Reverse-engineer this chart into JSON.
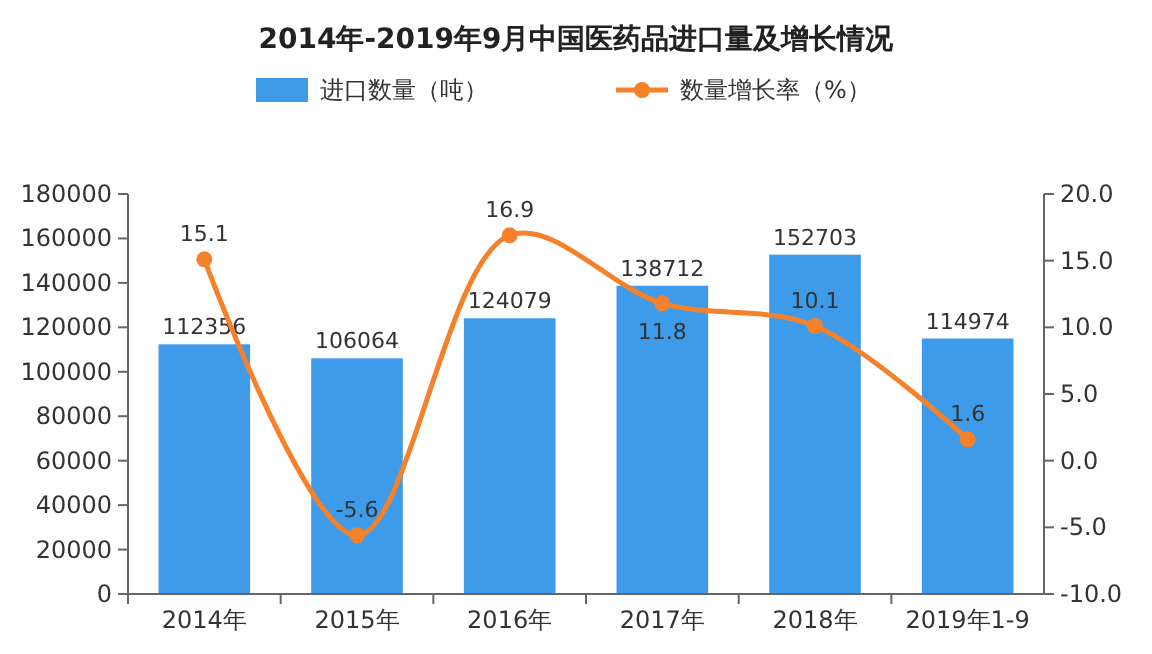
{
  "chart_data": {
    "type": "bar",
    "title": "2014年-2019年9月中国医药品进口量及增长情况",
    "categories": [
      "2014年",
      "2015年",
      "2016年",
      "2017年",
      "2018年",
      "2019年1-9"
    ],
    "series": [
      {
        "name": "进口数量（吨）",
        "color": "#3d9be9",
        "values": [
          112356,
          106064,
          124079,
          138712,
          152703,
          114974
        ]
      },
      {
        "name": "数量增长率（%）",
        "type": "line",
        "axis": "y2",
        "color": "#f5822a",
        "marker": "circle",
        "values": [
          15.1,
          -5.6,
          16.9,
          11.8,
          10.1,
          1.6
        ]
      }
    ],
    "ylim": [
      0,
      180000
    ],
    "yticks": [
      0,
      20000,
      40000,
      60000,
      80000,
      100000,
      120000,
      140000,
      160000,
      180000
    ],
    "y2lim": [
      -10,
      20
    ],
    "y2ticks": [
      {
        "value": -10,
        "label": "-10.0"
      },
      {
        "value": -5,
        "label": "-5.0"
      },
      {
        "value": 0,
        "label": "0.0"
      },
      {
        "value": 5,
        "label": "5.0"
      },
      {
        "value": 10,
        "label": "10.0"
      },
      {
        "value": 15,
        "label": "15.0"
      },
      {
        "value": 20,
        "label": "20.0"
      }
    ],
    "legend": "top",
    "data_labels": true
  }
}
